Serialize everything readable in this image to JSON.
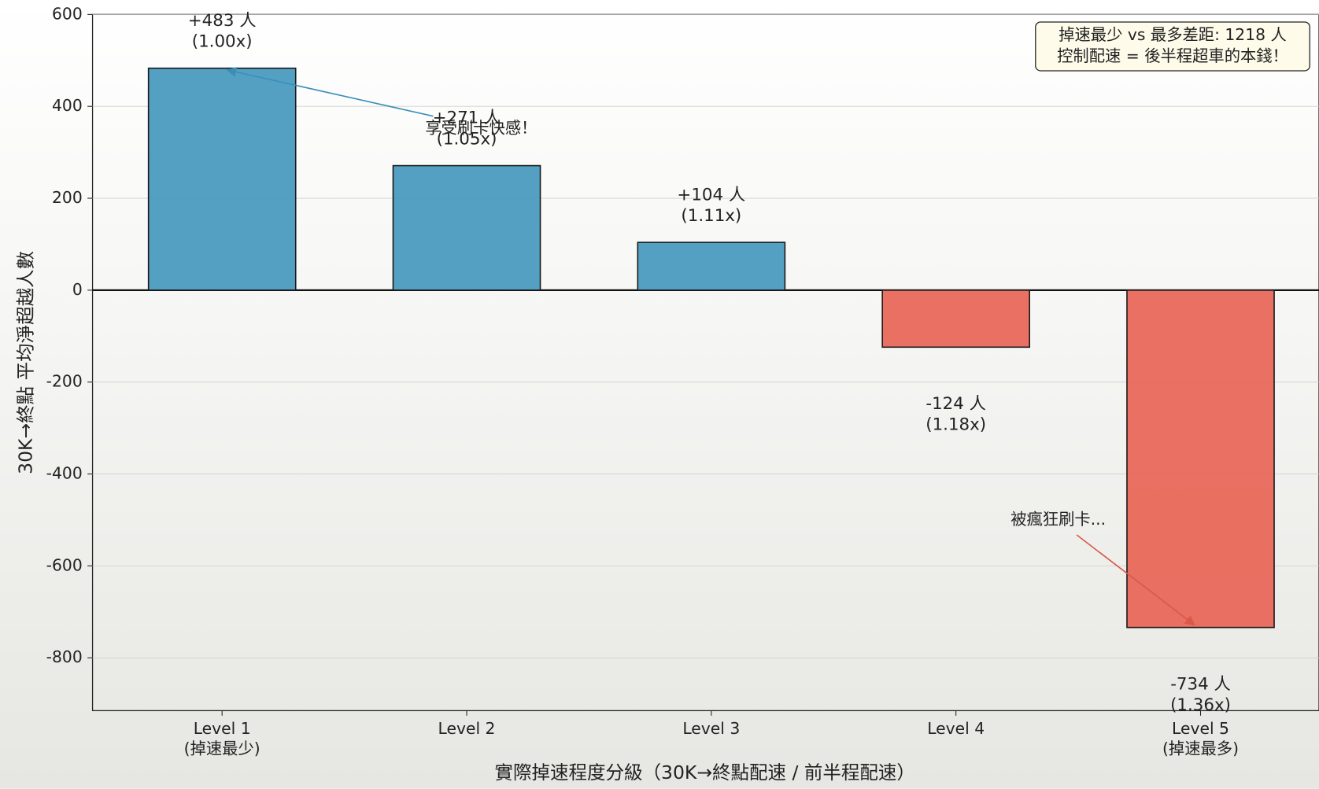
{
  "chart_data": {
    "type": "bar",
    "categories": [
      "Level 1\n(掉速最少)",
      "Level 2",
      "Level 3",
      "Level 4",
      "Level 5\n(掉速最多)"
    ],
    "values": [
      483,
      271,
      104,
      -124,
      -734
    ],
    "value_labels": [
      "+483 人\n(1.00x)",
      "+271 人\n(1.05x)",
      "+104 人\n(1.11x)",
      "-124 人\n(1.18x)",
      "-734 人\n(1.36x)"
    ],
    "colors": [
      "#4b9bc0",
      "#4b9bc0",
      "#4b9bc0",
      "#e8685a",
      "#e8685a"
    ],
    "xlabel": "實際掉速程度分級（30K→終點配速 / 前半程配速）",
    "ylabel": "30K→終點 平均淨超越人數",
    "ylim": [
      -915,
      600
    ],
    "yticks": [
      600,
      400,
      200,
      0,
      -200,
      -400,
      -600,
      -800
    ],
    "grid": true,
    "annotations": [
      {
        "text": "享受刷卡快感！",
        "color": "#3a8fb8"
      },
      {
        "text": "被瘋狂刷卡...",
        "color": "#d9584a"
      }
    ],
    "info_box": [
      "掉速最少 vs 最多差距: 1218 人",
      "控制配速 = 後半程超車的本錢！"
    ]
  }
}
